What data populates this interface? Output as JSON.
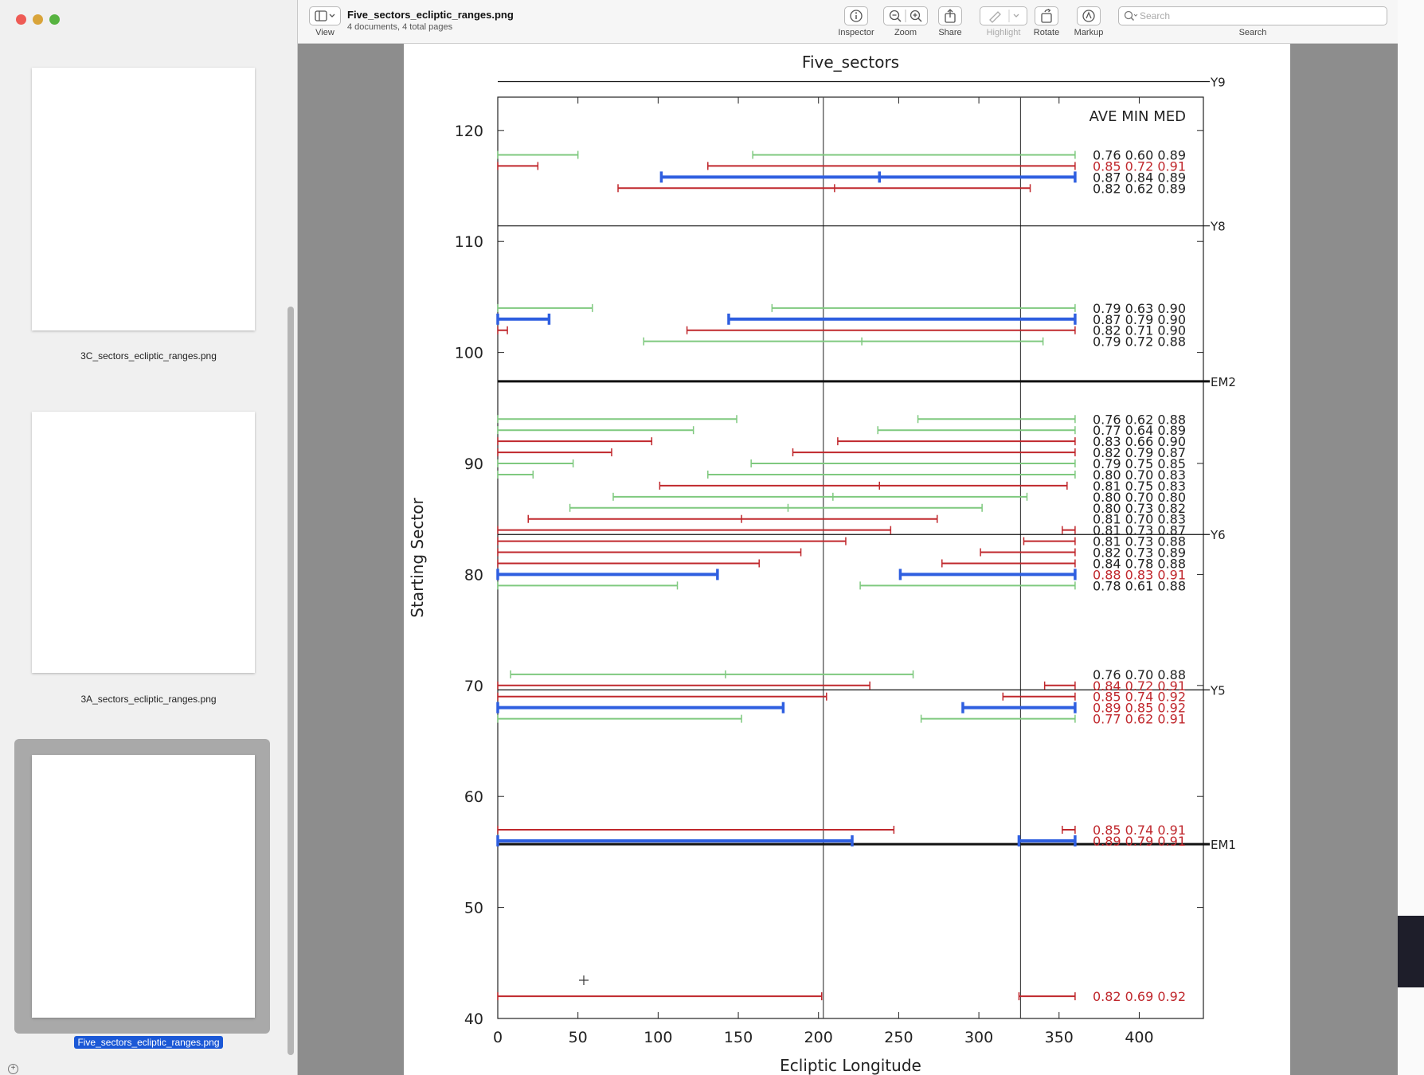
{
  "window": {
    "doc_title": "Five_sectors_ecliptic_ranges.png",
    "doc_subtitle": "4 documents, 4 total pages"
  },
  "toolbar": {
    "view_label": "View",
    "inspector_label": "Inspector",
    "zoom_label": "Zoom",
    "share_label": "Share",
    "highlight_label": "Highlight",
    "rotate_label": "Rotate",
    "markup_label": "Markup",
    "search_placeholder": "Search",
    "search_label": "Search"
  },
  "sidebar": {
    "items": [
      {
        "label": "3C_sectors_ecliptic_ranges.png",
        "selected": false
      },
      {
        "label": "3A_sectors_ecliptic_ranges.png",
        "selected": false
      },
      {
        "label": "Five_sectors_ecliptic_ranges.png",
        "selected": true
      }
    ]
  },
  "colors": {
    "green": "#7fc97f",
    "red": "#c0282d",
    "blue": "#2f5fe0",
    "selection": "#1b58d6"
  },
  "chart_data": {
    "type": "range",
    "title": "Five_sectors",
    "xlabel": "Ecliptic Longitude",
    "ylabel": "Starting Sector",
    "xlim": [
      0,
      440
    ],
    "ylim": [
      40,
      123
    ],
    "xticks": [
      0,
      50,
      100,
      150,
      200,
      250,
      300,
      350,
      400
    ],
    "yticks": [
      40,
      50,
      60,
      70,
      80,
      90,
      100,
      110,
      120
    ],
    "legend_header": "AVE MIN MED",
    "vlines": [
      203,
      326
    ],
    "markers": [
      {
        "label": "Y9",
        "y": 124.4,
        "thick": false
      },
      {
        "label": "Y8",
        "y": 111.4,
        "thick": false
      },
      {
        "label": "EM2",
        "y": 97.4,
        "thick": true
      },
      {
        "label": "Y6",
        "y": 83.6,
        "thick": false
      },
      {
        "label": "Y5",
        "y": 69.6,
        "thick": false
      },
      {
        "label": "EM1",
        "y": 55.7,
        "thick": true
      }
    ],
    "rows": [
      {
        "y": 117.8,
        "color": "green",
        "segments": [
          [
            0,
            50
          ],
          [
            159,
            360
          ]
        ],
        "stats": "0.76 0.60 0.89",
        "stats_color": "#222222"
      },
      {
        "y": 116.8,
        "color": "red",
        "segments": [
          [
            0,
            25
          ],
          [
            131,
            360
          ]
        ],
        "stats": "0.85 0.72 0.91",
        "stats_color": "#c0282d"
      },
      {
        "y": 115.8,
        "color": "blue",
        "segments": [
          [
            102,
            360
          ]
        ],
        "ticks": [
          238
        ],
        "stats": "0.87 0.84 0.89",
        "stats_color": "#222222"
      },
      {
        "y": 114.8,
        "color": "red",
        "segments": [
          [
            75,
            332
          ]
        ],
        "ticks": [
          210
        ],
        "stats": "0.82 0.62 0.89",
        "stats_color": "#222222"
      },
      {
        "y": 104.0,
        "color": "green",
        "segments": [
          [
            0,
            59
          ],
          [
            171,
            360
          ]
        ],
        "stats": "0.79 0.63 0.90",
        "stats_color": "#222222"
      },
      {
        "y": 103.0,
        "color": "blue",
        "segments": [
          [
            0,
            32
          ],
          [
            144,
            360
          ]
        ],
        "stats": "0.87 0.79 0.90",
        "stats_color": "#222222"
      },
      {
        "y": 102.0,
        "color": "red",
        "segments": [
          [
            0,
            6
          ],
          [
            118,
            360
          ]
        ],
        "stats": "0.82 0.71 0.90",
        "stats_color": "#222222"
      },
      {
        "y": 101.0,
        "color": "green",
        "segments": [
          [
            91,
            340
          ]
        ],
        "ticks": [
          227
        ],
        "stats": "0.79 0.72 0.88",
        "stats_color": "#222222"
      },
      {
        "y": 94.0,
        "color": "green",
        "segments": [
          [
            0,
            149
          ],
          [
            262,
            360
          ]
        ],
        "stats": "0.76 0.62 0.88",
        "stats_color": "#222222"
      },
      {
        "y": 93.0,
        "color": "green",
        "segments": [
          [
            0,
            122
          ],
          [
            237,
            360
          ]
        ],
        "stats": "0.77 0.64 0.89",
        "stats_color": "#222222"
      },
      {
        "y": 92.0,
        "color": "red",
        "segments": [
          [
            0,
            96
          ],
          [
            212,
            360
          ]
        ],
        "stats": "0.83 0.66 0.90",
        "stats_color": "#222222"
      },
      {
        "y": 91.0,
        "color": "red",
        "segments": [
          [
            0,
            71
          ],
          [
            184,
            360
          ]
        ],
        "stats": "0.82 0.79 0.87",
        "stats_color": "#222222"
      },
      {
        "y": 90.0,
        "color": "green",
        "segments": [
          [
            0,
            47
          ],
          [
            158,
            360
          ]
        ],
        "stats": "0.79 0.75 0.85",
        "stats_color": "#222222"
      },
      {
        "y": 89.0,
        "color": "green",
        "segments": [
          [
            0,
            22
          ],
          [
            131,
            360
          ]
        ],
        "stats": "0.80 0.70 0.83",
        "stats_color": "#222222"
      },
      {
        "y": 88.0,
        "color": "red",
        "segments": [
          [
            101,
            355
          ]
        ],
        "ticks": [
          238
        ],
        "stats": "0.81 0.75 0.83",
        "stats_color": "#222222"
      },
      {
        "y": 87.0,
        "color": "green",
        "segments": [
          [
            72,
            330
          ]
        ],
        "ticks": [
          209
        ],
        "stats": "0.80 0.70 0.80",
        "stats_color": "#222222"
      },
      {
        "y": 86.0,
        "color": "green",
        "segments": [
          [
            45,
            302
          ]
        ],
        "ticks": [
          181
        ],
        "stats": "0.80 0.73 0.82",
        "stats_color": "#222222"
      },
      {
        "y": 85.0,
        "color": "red",
        "segments": [
          [
            19,
            274
          ]
        ],
        "ticks": [
          152
        ],
        "stats": "0.81 0.70 0.83",
        "stats_color": "#222222"
      },
      {
        "y": 84.0,
        "color": "red",
        "segments": [
          [
            0,
            245
          ],
          [
            352,
            360
          ]
        ],
        "stats": "0.81 0.73 0.87",
        "stats_color": "#222222"
      },
      {
        "y": 83.0,
        "color": "red",
        "segments": [
          [
            0,
            217
          ],
          [
            328,
            360
          ]
        ],
        "stats": "0.81 0.73 0.88",
        "stats_color": "#222222"
      },
      {
        "y": 82.0,
        "color": "red",
        "segments": [
          [
            0,
            189
          ],
          [
            301,
            360
          ]
        ],
        "stats": "0.82 0.73 0.89",
        "stats_color": "#222222"
      },
      {
        "y": 81.0,
        "color": "red",
        "segments": [
          [
            0,
            163
          ],
          [
            277,
            360
          ]
        ],
        "stats": "0.84 0.78 0.88",
        "stats_color": "#222222"
      },
      {
        "y": 80.0,
        "color": "blue",
        "segments": [
          [
            0,
            137
          ],
          [
            251,
            360
          ]
        ],
        "stats": "0.88 0.83 0.91",
        "stats_color": "#c0282d"
      },
      {
        "y": 79.0,
        "color": "green",
        "segments": [
          [
            0,
            112
          ],
          [
            226,
            360
          ]
        ],
        "stats": "0.78 0.61 0.88",
        "stats_color": "#222222"
      },
      {
        "y": 71.0,
        "color": "green",
        "segments": [
          [
            8,
            259
          ]
        ],
        "ticks": [
          142
        ],
        "stats": "0.76 0.70 0.88",
        "stats_color": "#222222"
      },
      {
        "y": 70.0,
        "color": "red",
        "segments": [
          [
            0,
            232
          ],
          [
            341,
            360
          ]
        ],
        "stats": "0.84 0.72 0.91",
        "stats_color": "#c0282d"
      },
      {
        "y": 69.0,
        "color": "red",
        "segments": [
          [
            0,
            205
          ],
          [
            315,
            360
          ]
        ],
        "stats": "0.85 0.74 0.92",
        "stats_color": "#c0282d"
      },
      {
        "y": 68.0,
        "color": "blue",
        "segments": [
          [
            0,
            178
          ],
          [
            290,
            360
          ]
        ],
        "stats": "0.89 0.85 0.92",
        "stats_color": "#c0282d"
      },
      {
        "y": 67.0,
        "color": "green",
        "segments": [
          [
            0,
            152
          ],
          [
            264,
            360
          ]
        ],
        "stats": "0.77 0.62 0.91",
        "stats_color": "#c0282d"
      },
      {
        "y": 57.0,
        "color": "red",
        "segments": [
          [
            0,
            247
          ],
          [
            352,
            360
          ]
        ],
        "stats": "0.85 0.74 0.91",
        "stats_color": "#c0282d"
      },
      {
        "y": 56.0,
        "color": "blue",
        "segments": [
          [
            0,
            221
          ],
          [
            325,
            360
          ]
        ],
        "stats": "0.89 0.79 0.91",
        "stats_color": "#c0282d"
      },
      {
        "y": 42.0,
        "color": "red",
        "segments": [
          [
            0,
            202
          ],
          [
            325,
            360
          ]
        ],
        "stats": "0.82 0.69 0.92",
        "stats_color": "#c0282d"
      }
    ]
  }
}
